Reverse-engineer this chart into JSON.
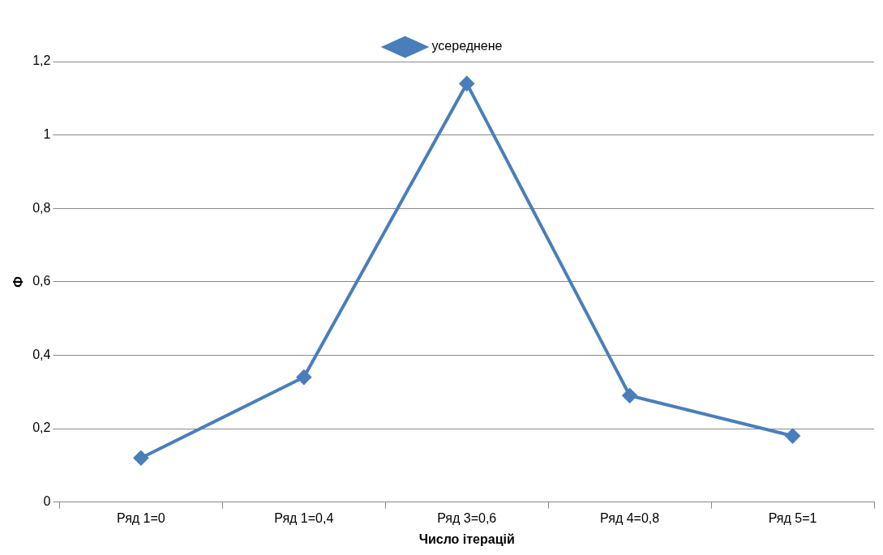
{
  "chart_data": {
    "type": "line",
    "xlabel": "Число ітерацій",
    "ylabel": "Ф",
    "categories": [
      "Ряд 1=0",
      "Ряд 1=0,4",
      "Ряд 3=0,6",
      "Ряд 4=0,8",
      "Ряд 5=1"
    ],
    "series": [
      {
        "name": "усереднене",
        "color": "#4a7ebb",
        "values": [
          0.12,
          0.34,
          1.14,
          0.29,
          0.18
        ]
      }
    ],
    "ylim": [
      0,
      1.2
    ],
    "yticks": [
      0,
      {
        "value": 0.2,
        "label": "0,2"
      },
      {
        "value": 0.4,
        "label": "0,4"
      },
      {
        "value": 0.6,
        "label": "0,6"
      },
      {
        "value": 0.8,
        "label": "0,8"
      },
      1,
      {
        "value": 1.2,
        "label": "1,2"
      }
    ],
    "grid": "y",
    "legend": "top",
    "marker": "diamond",
    "line_style": "solid"
  }
}
